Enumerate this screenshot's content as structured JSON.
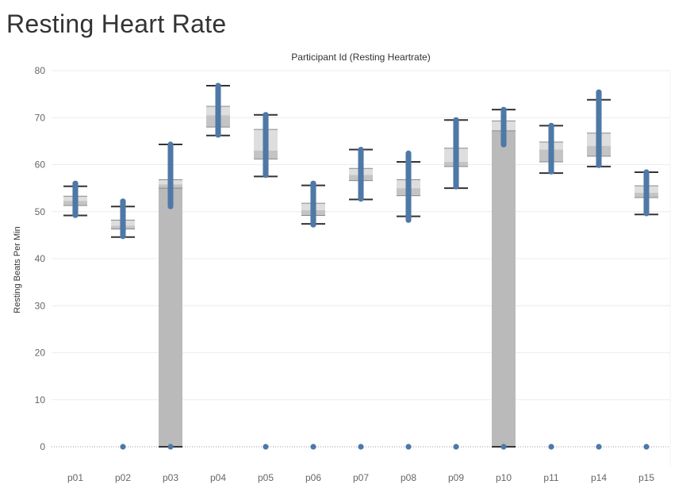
{
  "page": {
    "title": "Resting Heart Rate"
  },
  "colors": {
    "point": "#4e79a7",
    "bar": "#bababa",
    "box_upper": "#dedede",
    "box_lower": "#c4c4c4",
    "whisker": "#333333",
    "grid": "#ececec",
    "zero_line": "#9a9a9a",
    "text": "#666666"
  },
  "chart_data": {
    "type": "bar",
    "title": "Participant Id (Resting Heartrate)",
    "xlabel": "",
    "ylabel": "Resting Beats Per Min",
    "ylim": [
      0,
      80
    ],
    "yticks": [
      0,
      10,
      20,
      30,
      40,
      50,
      60,
      70,
      80
    ],
    "grid": true,
    "categories": [
      "p01",
      "p02",
      "p03",
      "p04",
      "p05",
      "p06",
      "p07",
      "p08",
      "p09",
      "p10",
      "p11",
      "p14",
      "p15"
    ],
    "series": [
      {
        "type": "bar",
        "values": [
          0,
          0,
          55,
          0,
          0,
          0,
          0,
          0,
          0,
          67.2,
          0,
          0,
          0
        ]
      }
    ],
    "boxes": [
      {
        "category": "p01",
        "min": 49.2,
        "q1": 51.3,
        "median": 52.3,
        "q3": 53.3,
        "max": 55.4,
        "points_min": 49.2,
        "points_max": 56.0,
        "zero_point": false
      },
      {
        "category": "p02",
        "min": 44.6,
        "q1": 46.3,
        "median": 47.0,
        "q3": 48.2,
        "max": 51.1,
        "points_min": 44.6,
        "points_max": 52.2,
        "zero_point": true
      },
      {
        "category": "p03",
        "min": 0,
        "q1": 55.0,
        "median": 55.8,
        "q3": 56.8,
        "max": 64.3,
        "points_min": 51.0,
        "points_max": 64.3,
        "zero_point": true
      },
      {
        "category": "p04",
        "min": 66.2,
        "q1": 68.0,
        "median": 70.5,
        "q3": 72.4,
        "max": 76.8,
        "points_min": 66.2,
        "points_max": 76.8,
        "zero_point": false
      },
      {
        "category": "p05",
        "min": 57.5,
        "q1": 61.2,
        "median": 63.0,
        "q3": 67.5,
        "max": 70.6,
        "points_min": 57.5,
        "points_max": 70.6,
        "zero_point": true
      },
      {
        "category": "p06",
        "min": 47.4,
        "q1": 49.2,
        "median": 50.3,
        "q3": 51.8,
        "max": 55.6,
        "points_min": 47.2,
        "points_max": 56.0,
        "zero_point": true
      },
      {
        "category": "p07",
        "min": 52.6,
        "q1": 56.6,
        "median": 57.8,
        "q3": 59.2,
        "max": 63.2,
        "points_min": 52.6,
        "points_max": 63.2,
        "zero_point": true
      },
      {
        "category": "p08",
        "min": 49.0,
        "q1": 53.4,
        "median": 55.0,
        "q3": 56.8,
        "max": 60.6,
        "points_min": 48.0,
        "points_max": 62.4,
        "zero_point": true
      },
      {
        "category": "p09",
        "min": 55.0,
        "q1": 59.6,
        "median": 60.6,
        "q3": 63.5,
        "max": 69.5,
        "points_min": 55.0,
        "points_max": 69.5,
        "zero_point": true
      },
      {
        "category": "p10",
        "min": 0,
        "q1": 67.2,
        "median": 67.2,
        "q3": 69.3,
        "max": 71.7,
        "points_min": 64.0,
        "points_max": 71.7,
        "zero_point": true
      },
      {
        "category": "p11",
        "min": 58.2,
        "q1": 60.6,
        "median": 63.2,
        "q3": 64.8,
        "max": 68.3,
        "points_min": 58.2,
        "points_max": 68.3,
        "zero_point": true
      },
      {
        "category": "p14",
        "min": 59.6,
        "q1": 61.8,
        "median": 64.0,
        "q3": 66.7,
        "max": 73.8,
        "points_min": 59.6,
        "points_max": 75.4,
        "zero_point": true
      },
      {
        "category": "p15",
        "min": 49.4,
        "q1": 53.0,
        "median": 54.0,
        "q3": 55.5,
        "max": 58.4,
        "points_min": 49.4,
        "points_max": 58.4,
        "zero_point": true
      }
    ]
  }
}
